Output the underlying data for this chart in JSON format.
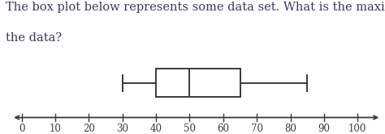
{
  "title_line1": "The box plot below represents some data set. What is the maximum value of",
  "title_line2": "the data?",
  "title_fontsize": 10.5,
  "title_color": "#3a3a5c",
  "whisker_min": 30,
  "q1": 40,
  "median": 50,
  "q3": 65,
  "whisker_max": 85,
  "box_color": "#ffffff",
  "box_edge_color": "#3a3a3a",
  "line_color": "#3a3a3a",
  "axis_color": "#3a3a3a",
  "tick_color": "#3a3a3a",
  "label_color": "#3a3a3a",
  "xlim": [
    -3,
    107
  ],
  "xticks": [
    0,
    10,
    20,
    30,
    40,
    50,
    60,
    70,
    80,
    90,
    100
  ],
  "linewidth": 1.4,
  "font_family": "serif",
  "label_fontsize": 8.5,
  "background_color": "#ffffff"
}
